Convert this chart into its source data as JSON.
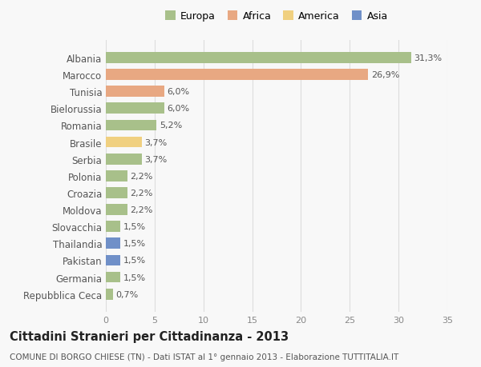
{
  "countries": [
    "Albania",
    "Marocco",
    "Tunisia",
    "Bielorussia",
    "Romania",
    "Brasile",
    "Serbia",
    "Polonia",
    "Croazia",
    "Moldova",
    "Slovacchia",
    "Thailandia",
    "Pakistan",
    "Germania",
    "Repubblica Ceca"
  ],
  "values": [
    31.3,
    26.9,
    6.0,
    6.0,
    5.2,
    3.7,
    3.7,
    2.2,
    2.2,
    2.2,
    1.5,
    1.5,
    1.5,
    1.5,
    0.7
  ],
  "labels": [
    "31,3%",
    "26,9%",
    "6,0%",
    "6,0%",
    "5,2%",
    "3,7%",
    "3,7%",
    "2,2%",
    "2,2%",
    "2,2%",
    "1,5%",
    "1,5%",
    "1,5%",
    "1,5%",
    "0,7%"
  ],
  "continents": [
    "Europa",
    "Africa",
    "Africa",
    "Europa",
    "Europa",
    "America",
    "Europa",
    "Europa",
    "Europa",
    "Europa",
    "Europa",
    "Asia",
    "Asia",
    "Europa",
    "Europa"
  ],
  "colors": {
    "Europa": "#a8c08a",
    "Africa": "#e8a882",
    "America": "#f0d080",
    "Asia": "#7090c8"
  },
  "legend_labels": [
    "Europa",
    "Africa",
    "America",
    "Asia"
  ],
  "legend_colors": [
    "#a8c08a",
    "#e8a882",
    "#f0d080",
    "#7090c8"
  ],
  "xlim": [
    0,
    35
  ],
  "xticks": [
    0,
    5,
    10,
    15,
    20,
    25,
    30,
    35
  ],
  "title": "Cittadini Stranieri per Cittadinanza - 2013",
  "subtitle": "COMUNE DI BORGO CHIESE (TN) - Dati ISTAT al 1° gennaio 2013 - Elaborazione TUTTITALIA.IT",
  "bg_color": "#f8f8f8",
  "grid_color": "#dddddd",
  "bar_height": 0.65,
  "label_fontsize": 8.0,
  "ytick_fontsize": 8.5,
  "title_fontsize": 10.5,
  "subtitle_fontsize": 7.5
}
